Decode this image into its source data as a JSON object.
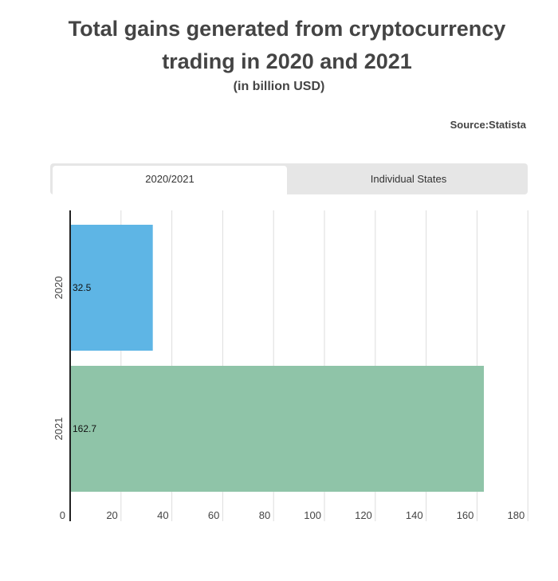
{
  "header": {
    "title_line1": "Total gains generated from cryptocurrency",
    "title_line2": "trading in 2020 and 2021",
    "subtitle": "(in billion USD)",
    "source": "Source:Statista"
  },
  "tabs": [
    {
      "label": "2020/2021",
      "active": true
    },
    {
      "label": "Individual States",
      "active": false
    }
  ],
  "chart_data": {
    "type": "bar",
    "orientation": "horizontal",
    "title": "Total gains generated from cryptocurrency trading in 2020 and 2021",
    "subtitle": "(in billion USD)",
    "categories": [
      "2020",
      "2021"
    ],
    "values": [
      32.5,
      162.7
    ],
    "data_labels": [
      "32.5",
      "162.7"
    ],
    "colors": [
      "#5eb5e5",
      "#8fc4a8"
    ],
    "xlim": [
      0,
      180
    ],
    "x_ticks": [
      0,
      20,
      40,
      60,
      80,
      100,
      120,
      140,
      160,
      180
    ],
    "grid": true,
    "legend": "none"
  }
}
